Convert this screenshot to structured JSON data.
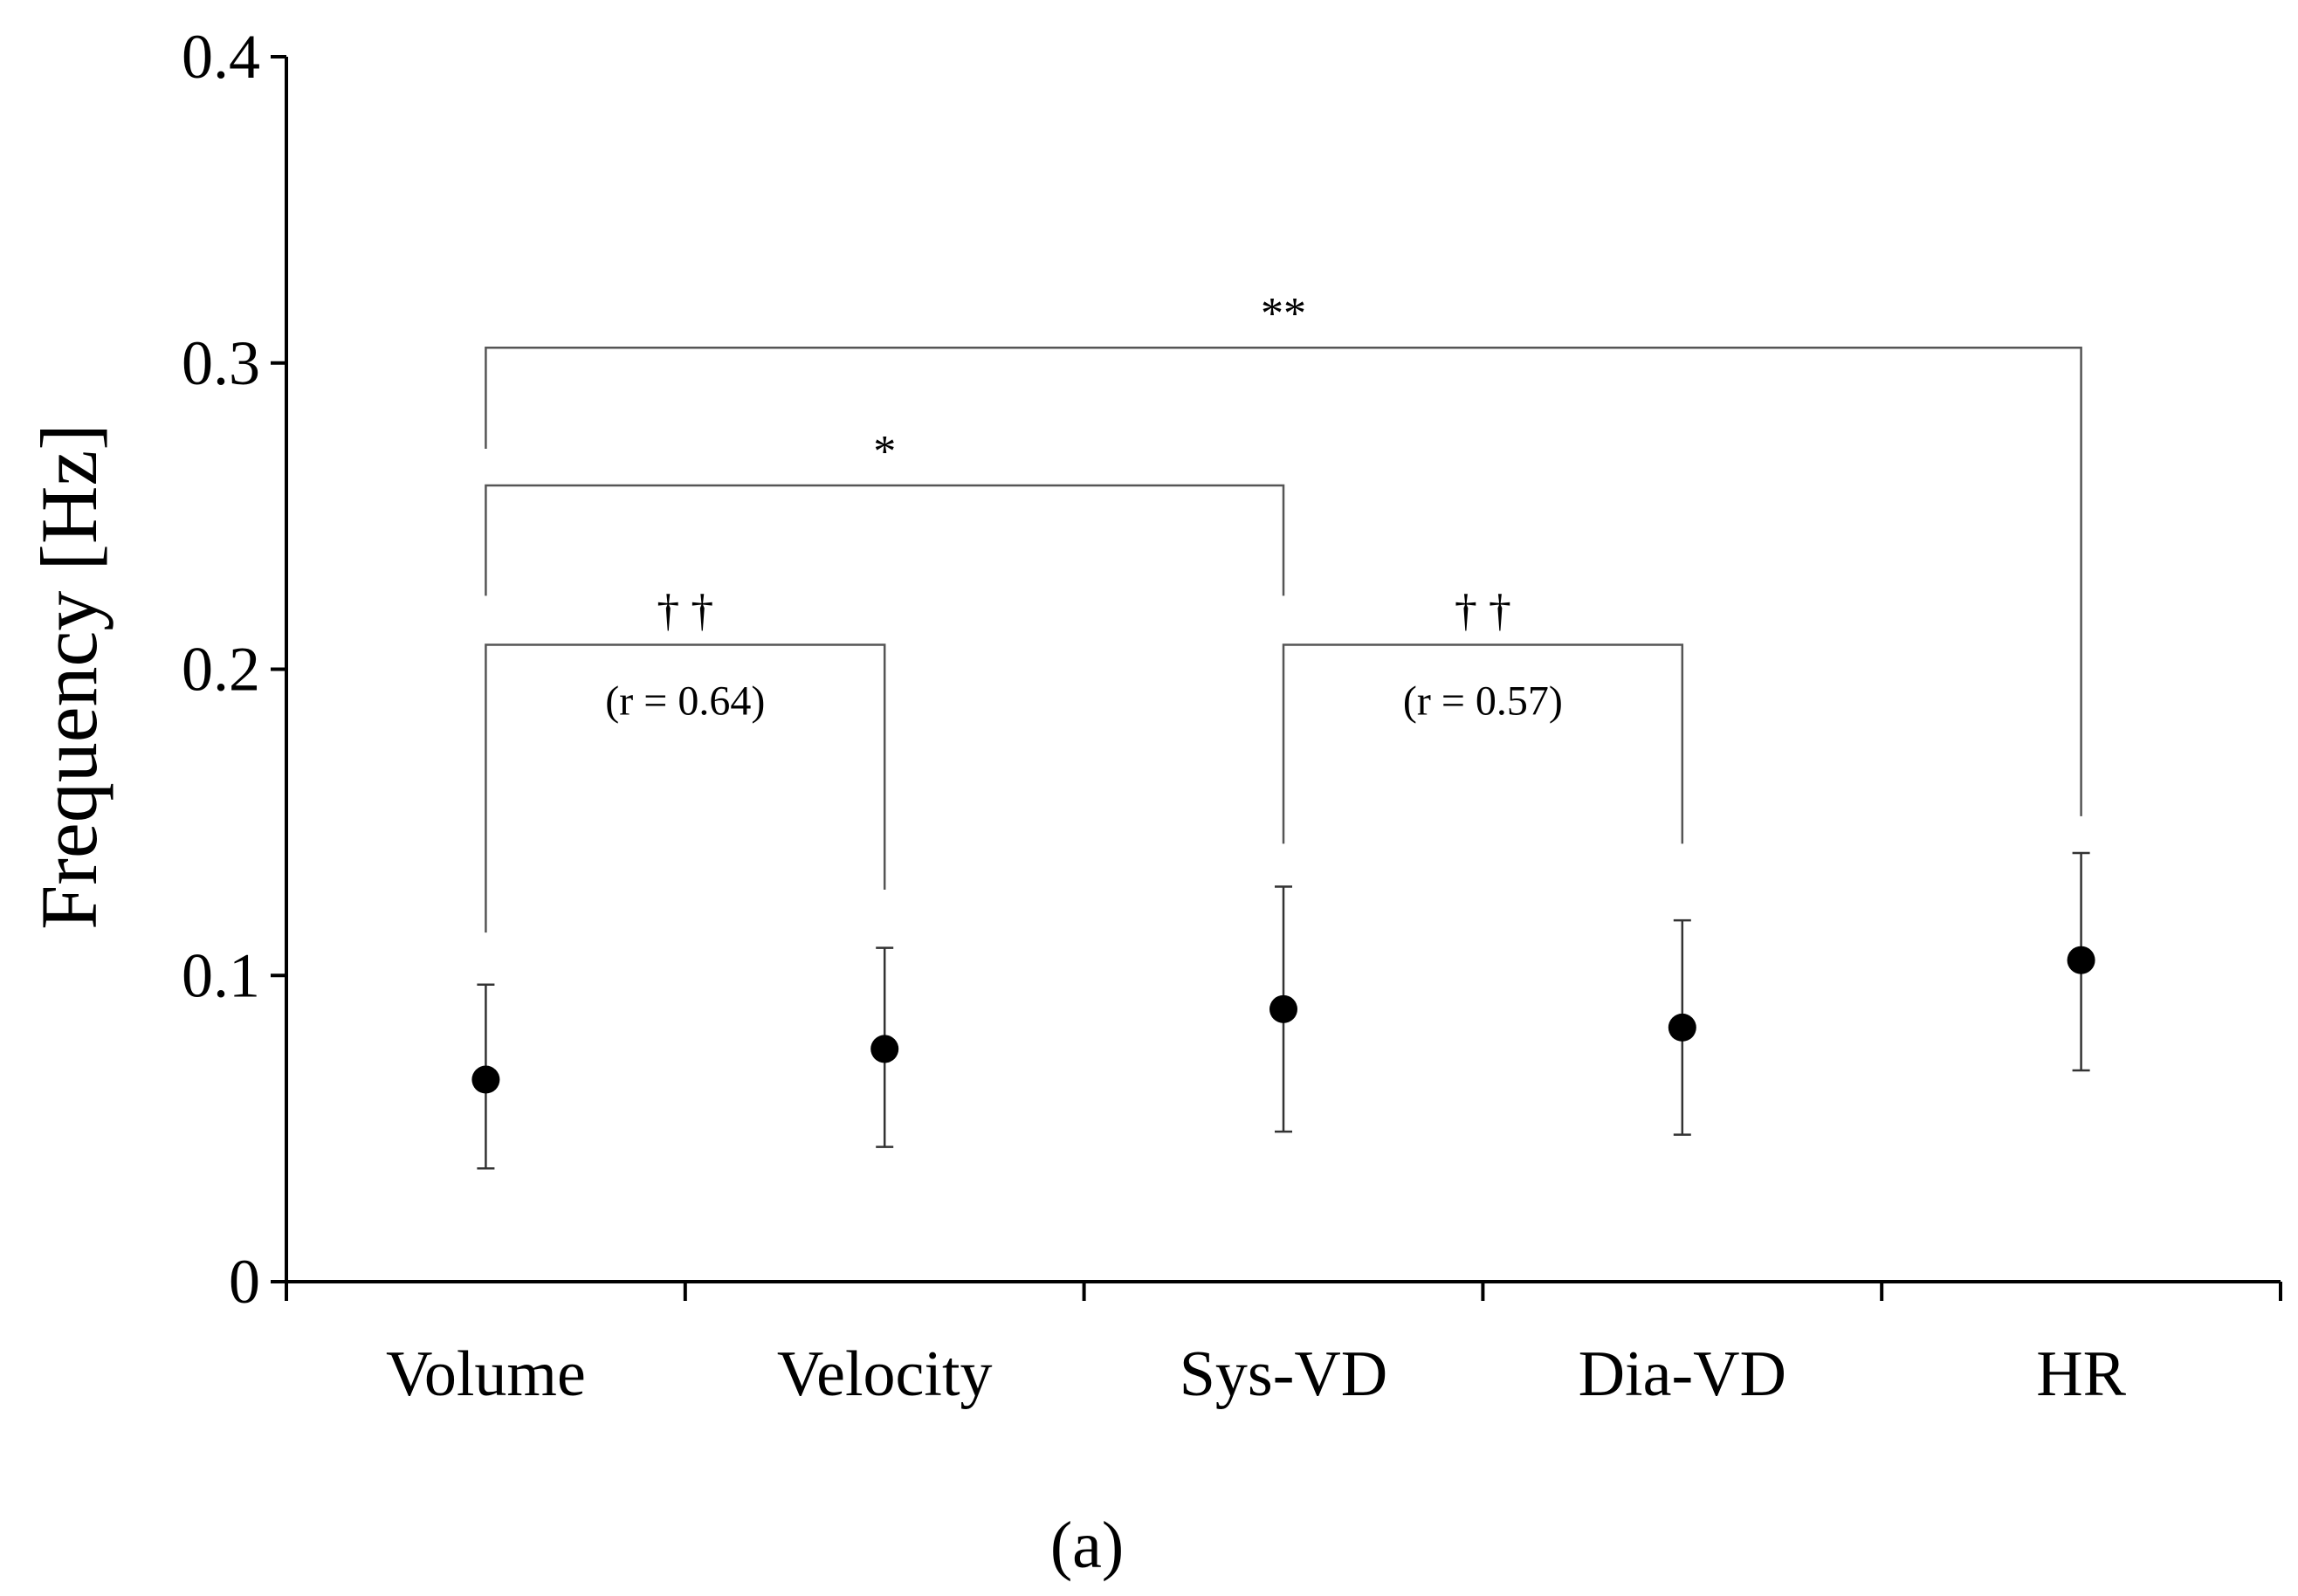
{
  "chart_data": {
    "type": "scatter",
    "ylabel": "Frequency [Hz]",
    "xlabel": "",
    "ylim": [
      0,
      0.4
    ],
    "yticks": [
      "0",
      "0.1",
      "0.2",
      "0.3",
      "0.4"
    ],
    "categories": [
      "Volume",
      "Velocity",
      "Sys-VD",
      "Dia-VD",
      "HR"
    ],
    "series": [
      {
        "values": [
          0.066,
          0.076,
          0.089,
          0.083,
          0.105
        ],
        "error_low": [
          0.037,
          0.044,
          0.049,
          0.048,
          0.069
        ],
        "error_high": [
          0.097,
          0.109,
          0.129,
          0.118,
          0.14
        ],
        "color": "#000000"
      }
    ],
    "brackets": [
      {
        "from": 0,
        "to": 4,
        "y": 0.305,
        "left_end": 0.272,
        "right_end": 0.152,
        "label": "**"
      },
      {
        "from": 0,
        "to": 2,
        "y": 0.26,
        "left_end": 0.224,
        "right_end": 0.224,
        "label": "*"
      },
      {
        "from": 0,
        "to": 1,
        "y": 0.208,
        "left_end": 0.114,
        "right_end": 0.128,
        "label": "† †",
        "sublabel": "(r = 0.64)"
      },
      {
        "from": 2,
        "to": 3,
        "y": 0.208,
        "left_end": 0.143,
        "right_end": 0.143,
        "label": "† †",
        "sublabel": "(r = 0.57)"
      }
    ],
    "grid": false,
    "legend": "none"
  },
  "panel_label": "(a)"
}
